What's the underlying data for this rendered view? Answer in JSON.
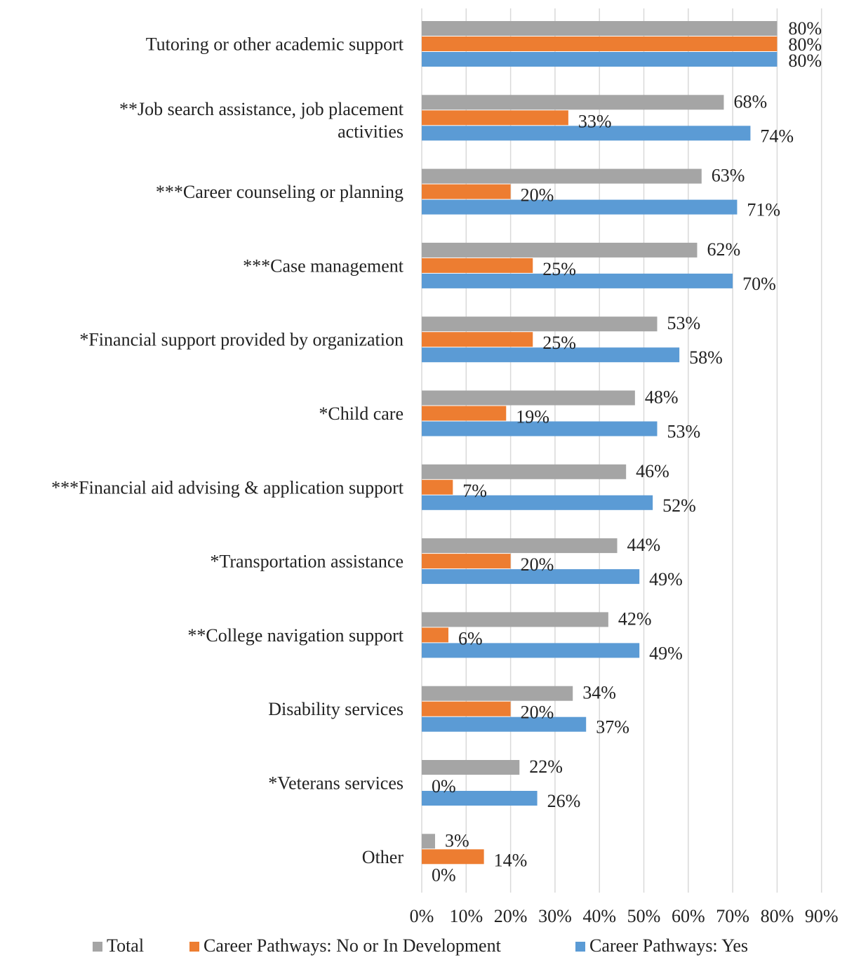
{
  "chart_data": {
    "type": "bar",
    "orientation": "horizontal",
    "title": "",
    "xlabel": "",
    "ylabel": "",
    "xlim": [
      0,
      90
    ],
    "x_ticks": [
      "0%",
      "10%",
      "20%",
      "30%",
      "40%",
      "50%",
      "60%",
      "70%",
      "80%",
      "90%"
    ],
    "grid": "vertical gridlines on",
    "legend_position": "bottom",
    "categories": [
      [
        "Tutoring or other academic support"
      ],
      [
        "**Job search assistance, job placement",
        "activities"
      ],
      [
        "***Career counseling or planning"
      ],
      [
        "***Case management"
      ],
      [
        "*Financial support provided by organization"
      ],
      [
        "*Child care"
      ],
      [
        "***Financial aid advising & application support"
      ],
      [
        "*Transportation assistance"
      ],
      [
        "**College navigation support"
      ],
      [
        "Disability services"
      ],
      [
        "*Veterans services"
      ],
      [
        "Other"
      ]
    ],
    "series": [
      {
        "name": "Total",
        "color": "#a5a5a5",
        "values": [
          80,
          68,
          63,
          62,
          53,
          48,
          46,
          44,
          42,
          34,
          22,
          3
        ]
      },
      {
        "name": "Career Pathways: No or In Development",
        "color": "#ed7d31",
        "values": [
          80,
          33,
          20,
          25,
          25,
          19,
          7,
          20,
          6,
          20,
          0,
          14
        ]
      },
      {
        "name": "Career Pathways: Yes",
        "color": "#5b9bd5",
        "values": [
          80,
          74,
          71,
          70,
          58,
          53,
          52,
          49,
          49,
          37,
          26,
          0
        ]
      }
    ],
    "value_suffix": "%"
  }
}
